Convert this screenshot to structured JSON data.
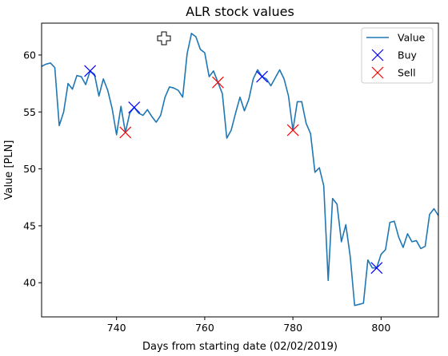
{
  "chart_data": {
    "type": "line",
    "title": "ALR stock values",
    "xlabel": "Days from starting date (02/02/2019)",
    "ylabel": "Value [PLN]",
    "xlim": [
      723,
      813
    ],
    "ylim": [
      37,
      62.8
    ],
    "xticks": [
      740,
      760,
      780,
      800
    ],
    "yticks": [
      40,
      45,
      50,
      55,
      60
    ],
    "legend_position": "top-right",
    "colors": {
      "value": "#1f77b4",
      "buy": "#0000ff",
      "sell": "#ff0000"
    },
    "series": [
      {
        "name": "Value",
        "marker": "line",
        "x": [
          723,
          724,
          725,
          726,
          727,
          728,
          729,
          730,
          731,
          732,
          733,
          734,
          735,
          736,
          737,
          738,
          739,
          740,
          741,
          742,
          743,
          744,
          745,
          746,
          747,
          748,
          749,
          750,
          751,
          752,
          753,
          754,
          755,
          756,
          757,
          758,
          759,
          760,
          761,
          762,
          763,
          764,
          765,
          766,
          767,
          768,
          769,
          770,
          771,
          772,
          773,
          774,
          775,
          776,
          777,
          778,
          779,
          780,
          781,
          782,
          783,
          784,
          785,
          786,
          787,
          788,
          789,
          790,
          791,
          792,
          793,
          794,
          795,
          796,
          797,
          798,
          799,
          800,
          801,
          802,
          803,
          804,
          805,
          806,
          807,
          808,
          809,
          810,
          811,
          812,
          813
        ],
        "y": [
          59.0,
          59.2,
          59.3,
          58.9,
          53.8,
          55.0,
          57.5,
          57.0,
          58.2,
          58.1,
          57.4,
          58.6,
          58.3,
          56.4,
          57.9,
          56.9,
          55.3,
          53.0,
          55.5,
          53.2,
          54.9,
          55.4,
          54.9,
          54.7,
          55.2,
          54.6,
          54.1,
          54.7,
          56.3,
          57.2,
          57.1,
          56.9,
          56.3,
          60.1,
          61.9,
          61.6,
          60.5,
          60.2,
          58.1,
          58.6,
          57.6,
          56.6,
          52.7,
          53.4,
          54.9,
          56.3,
          55.1,
          56.1,
          57.9,
          58.7,
          58.1,
          57.9,
          57.3,
          58.0,
          58.7,
          57.9,
          56.4,
          53.4,
          55.9,
          55.9,
          54.0,
          53.1,
          49.7,
          50.1,
          48.5,
          40.2,
          47.4,
          46.9,
          43.6,
          45.1,
          42.3,
          38.0,
          38.1,
          38.2,
          42.0,
          41.3,
          41.3,
          42.5,
          42.9,
          45.3,
          45.4,
          44.0,
          43.1,
          44.3,
          43.6,
          43.7,
          43.0,
          43.2,
          46.0,
          46.5,
          45.9
        ]
      },
      {
        "name": "Buy",
        "marker": "x",
        "x": [
          734,
          744,
          773,
          799
        ],
        "y": [
          58.6,
          55.4,
          58.1,
          41.3
        ]
      },
      {
        "name": "Sell",
        "marker": "x",
        "x": [
          742,
          763,
          780
        ],
        "y": [
          53.2,
          57.6,
          53.4
        ]
      }
    ]
  }
}
